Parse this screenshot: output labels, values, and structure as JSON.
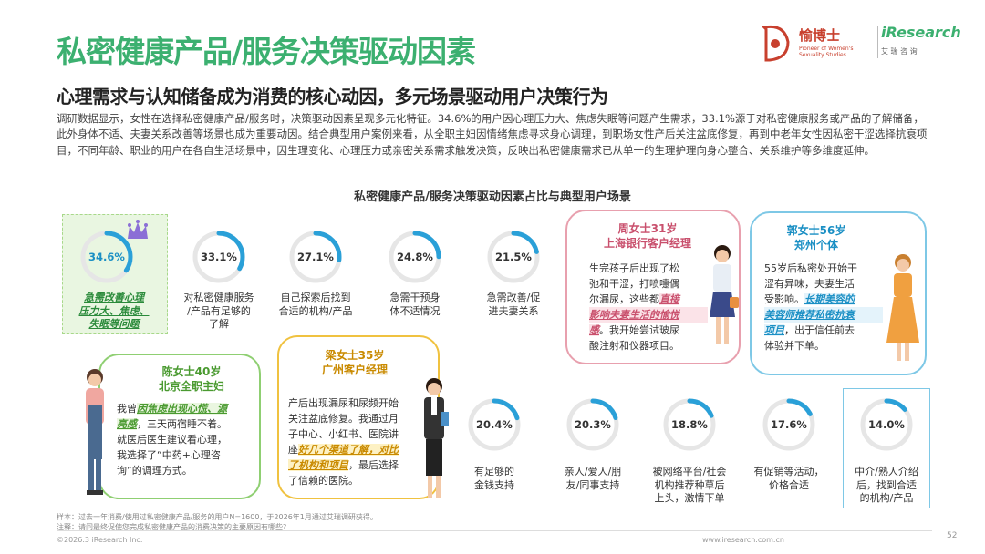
{
  "header": {
    "title": "私密健康产品/服务决策驱动因素",
    "subtitle": "心理需求与认知储备成为消费的核心动因，多元场景驱动用户决策行为",
    "logo_brand": "愉博士",
    "logo_brand_en": "Pioneer of Women's Sexuality Studies",
    "logo_partner": "iResearch",
    "logo_partner_cn": "艾 瑞 咨 询"
  },
  "intro": "调研数据显示，女性在选择私密健康产品/服务时，决策驱动因素呈现多元化特征。34.6%的用户因心理压力大、焦虑失眠等问题产生需求，33.1%源于对私密健康服务或产品的了解储备，此外身体不适、夫妻关系改善等场景也成为重要动因。结合典型用户案例来看，从全职主妇因情绪焦虑寻求身心调理，到职场女性产后关注盆底修复，再到中老年女性因私密干涩选择抗衰项目，不同年龄、职业的用户在各自生活场景中，因生理变化、心理压力或亲密关系需求触发决策，反映出私密健康需求已从单一的生理护理向身心整合、关系维护等多维度延伸。",
  "chart_data": {
    "type": "donut",
    "title": "私密健康产品/服务决策驱动因素占比与典型用户场景",
    "items": [
      {
        "label": "急需改善心理压力大、焦虑、失眠等问题",
        "value": 34.6,
        "display": "34.6%"
      },
      {
        "label": "对私密健康服务/产品有足够的了解",
        "value": 33.1,
        "display": "33.1%"
      },
      {
        "label": "自己探索后找到合适的机构/产品",
        "value": 27.1,
        "display": "27.1%"
      },
      {
        "label": "急需干预身体不适情况",
        "value": 24.8,
        "display": "24.8%"
      },
      {
        "label": "急需改善/促进夫妻关系",
        "value": 21.5,
        "display": "21.5%"
      },
      {
        "label": "有足够的金钱支持",
        "value": 20.4,
        "display": "20.4%"
      },
      {
        "label": "亲人/爱人/朋友/同事支持",
        "value": 20.3,
        "display": "20.3%"
      },
      {
        "label": "被网络平台/社会机构推荐种草后上头，激情下单",
        "value": 18.8,
        "display": "18.8%"
      },
      {
        "label": "有促销等活动，价格合适",
        "value": 17.6,
        "display": "17.6%"
      },
      {
        "label": "中介/熟人介绍后，找到合适的机构/产品",
        "value": 14.0,
        "display": "14.0%"
      }
    ],
    "colors": {
      "ring": "#2aa0d8",
      "track": "#e6e6e6",
      "highlight_bg": "#e8f5e0",
      "highlight_border": "#a8d88a"
    }
  },
  "labels": {
    "l1a": "急需改善心理",
    "l1b": "压力大、焦虑、",
    "l1c": "失眠等问题",
    "l2a": "对私密健康服务",
    "l2b": "/产品有足够的",
    "l2c": "了解",
    "l3a": "自己探索后找到",
    "l3b": "合适的机构/产品",
    "l4a": "急需干预身",
    "l4b": "体不适情况",
    "l5a": "急需改善/促",
    "l5b": "进夫妻关系",
    "l6a": "有足够的",
    "l6b": "金钱支持",
    "l7a": "亲人/爱人/朋",
    "l7b": "友/同事支持",
    "l8a": "被网络平台/社会",
    "l8b": "机构推荐种草后",
    "l8c": "上头，激情下单",
    "l9a": "有促销等活动，",
    "l9b": "价格合适",
    "l10a": "中介/熟人介绍",
    "l10b": "后，找到合适",
    "l10c": "的机构/产品"
  },
  "personas": {
    "chen": {
      "name": "陈女士40岁",
      "role": "北京全职主妇",
      "t1": "我曾",
      "h1": "因焦虑出现心慌、源",
      "h2": "亮感",
      "t2": "，三天两宿睡不着。",
      "t3": "就医后医生建议看心理，",
      "t4": "我选择了“中药+心理咨",
      "t5": "询”的调理方式。"
    },
    "liang": {
      "name": "梁女士35岁",
      "role": "广州客户经理",
      "t1": "产后出现漏尿和尿频开始",
      "t2": "关注盆底修复。我通过月",
      "t3": "子中心、小红书、医院讲",
      "t4": "座",
      "h1": "好几个渠道了解，对比",
      "h2": "了机构和项目",
      "t5": "，最后选择",
      "t6": "了信赖的医院。"
    },
    "zhou": {
      "name": "周女士31岁",
      "role": "上海银行客户经理",
      "t1": "生完孩子后出现了松",
      "t2": "弛和干涩，打喷嚏偶",
      "t3": "尔漏尿，这些都",
      "h1": "直接",
      "h2": "影响夫妻生活的愉悦",
      "h3": "感",
      "t4": "。我开始尝试玻尿",
      "t5": "酸注射和仪器项目。"
    },
    "guo": {
      "name": "郭女士56岁",
      "role": "郑州个体",
      "t1": "55岁后私密处开始干",
      "t2": "涩有异味，夫妻生活",
      "t3": "受影响。",
      "h1": "长期美容的",
      "h2": "美容师推荐私密抗衰",
      "h3": "项目",
      "t4": "，出于信任前去",
      "t5": "体验并下单。"
    }
  },
  "footer": {
    "note1": "样本：过去一年消费/使用过私密健康产品/服务的用户N=1600，于2026年1月通过艾瑞调研获得。",
    "note2": "注释：请问最终促使您完成私密健康产品的消费决策的主要原因有哪些?",
    "copyright": "©2026.3 iResearch Inc.",
    "website": "www.iresearch.com.cn",
    "page": "52"
  }
}
